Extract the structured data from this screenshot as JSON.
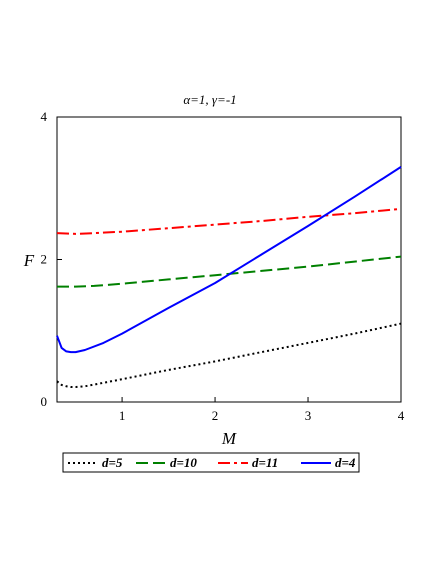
{
  "chart_data": {
    "type": "line",
    "title": "α=1, γ=-1",
    "xlabel": "M",
    "ylabel": "F",
    "xlim": [
      0.3,
      4
    ],
    "ylim": [
      0,
      4
    ],
    "xticks": [
      1,
      2,
      3,
      4
    ],
    "yticks": [
      0,
      2,
      4
    ],
    "grid": false,
    "legend_position": "bottom",
    "series": [
      {
        "name": "d=5",
        "color": "#000000",
        "dash": "dotted",
        "x": [
          0.3,
          0.35,
          0.4,
          0.45,
          0.5,
          0.6,
          0.8,
          1.0,
          1.5,
          2.0,
          2.5,
          3.0,
          3.5,
          4.0
        ],
        "y": [
          0.29,
          0.24,
          0.22,
          0.21,
          0.21,
          0.22,
          0.27,
          0.32,
          0.45,
          0.57,
          0.7,
          0.83,
          0.96,
          1.1
        ]
      },
      {
        "name": "d=10",
        "color": "#008000",
        "dash": "dashed",
        "x": [
          0.3,
          0.5,
          0.7,
          1.0,
          1.5,
          2.0,
          2.5,
          3.0,
          3.5,
          4.0
        ],
        "y": [
          1.62,
          1.62,
          1.63,
          1.66,
          1.72,
          1.78,
          1.84,
          1.9,
          1.97,
          2.04
        ]
      },
      {
        "name": "d=11",
        "color": "#ff0000",
        "dash": "dashdot",
        "x": [
          0.3,
          0.5,
          0.7,
          1.0,
          1.5,
          2.0,
          2.5,
          3.0,
          3.5,
          4.0
        ],
        "y": [
          2.37,
          2.36,
          2.37,
          2.39,
          2.44,
          2.49,
          2.54,
          2.6,
          2.65,
          2.71
        ]
      },
      {
        "name": "d=4",
        "color": "#0000ff",
        "dash": "solid",
        "x": [
          0.3,
          0.35,
          0.4,
          0.45,
          0.5,
          0.6,
          0.8,
          1.0,
          1.5,
          2.0,
          2.5,
          3.0,
          3.5,
          4.0
        ],
        "y": [
          0.93,
          0.76,
          0.71,
          0.7,
          0.7,
          0.73,
          0.83,
          0.96,
          1.32,
          1.67,
          2.07,
          2.47,
          2.88,
          3.3
        ]
      }
    ]
  }
}
